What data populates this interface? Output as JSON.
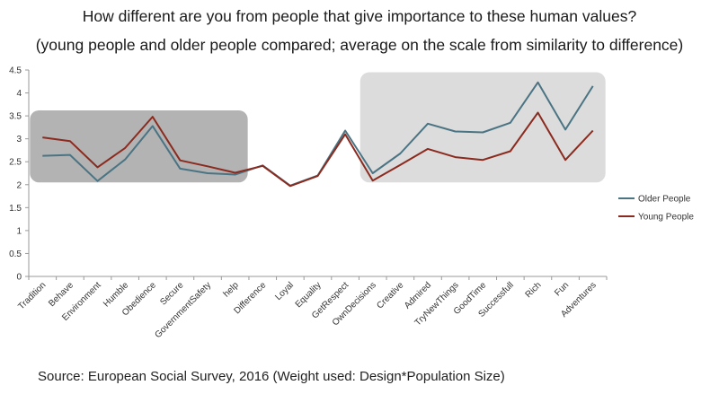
{
  "title": "How different are you from people that give importance to these human values?",
  "subtitle": "(young people and older people compared; average on the scale from similarity to difference)",
  "source": "Source: European Social Survey, 2016 (Weight used: Design*Population Size)",
  "colors": {
    "older": "#4a7483",
    "young": "#8b2a1e",
    "box_left": "#b3b3b3",
    "box_right": "#dcdcdc"
  },
  "chart_data": {
    "type": "line",
    "categories": [
      "Tradition",
      "Behave",
      "Environment",
      "Humble",
      "Obedience",
      "Secure",
      "GovernmentSafety",
      "help",
      "Difference",
      "Loyal",
      "Equality",
      "GetRespect",
      "OwnDecisions",
      "Creative",
      "Admired",
      "TryNewThings",
      "GoodTime",
      "Successfull",
      "Rich",
      "Fun",
      "Adventures"
    ],
    "series": [
      {
        "name": "Older People",
        "values": [
          2.63,
          2.65,
          2.08,
          2.55,
          3.28,
          2.35,
          2.25,
          2.22,
          2.42,
          1.98,
          2.2,
          3.18,
          2.25,
          2.68,
          3.33,
          3.16,
          3.14,
          3.35,
          4.23,
          3.2,
          4.15
        ]
      },
      {
        "name": "Young People",
        "values": [
          3.03,
          2.95,
          2.38,
          2.8,
          3.48,
          2.53,
          2.4,
          2.26,
          2.41,
          1.97,
          2.19,
          3.1,
          2.09,
          2.43,
          2.78,
          2.6,
          2.54,
          2.73,
          3.57,
          2.54,
          3.18
        ]
      }
    ],
    "ylim": [
      0,
      4.5
    ],
    "yticks": [
      "0",
      "0.5",
      "1",
      "1.5",
      "2",
      "2.5",
      "3",
      "3.5",
      "4",
      "4.5"
    ],
    "highlight_regions": [
      {
        "from_category": "Tradition",
        "to_category": "help",
        "y_from": 2.05,
        "y_to": 3.62,
        "shade": "dark"
      },
      {
        "from_category": "OwnDecisions",
        "to_category": "Adventures",
        "y_from": 2.05,
        "y_to": 4.45,
        "shade": "light"
      }
    ],
    "legend_position": "right"
  }
}
